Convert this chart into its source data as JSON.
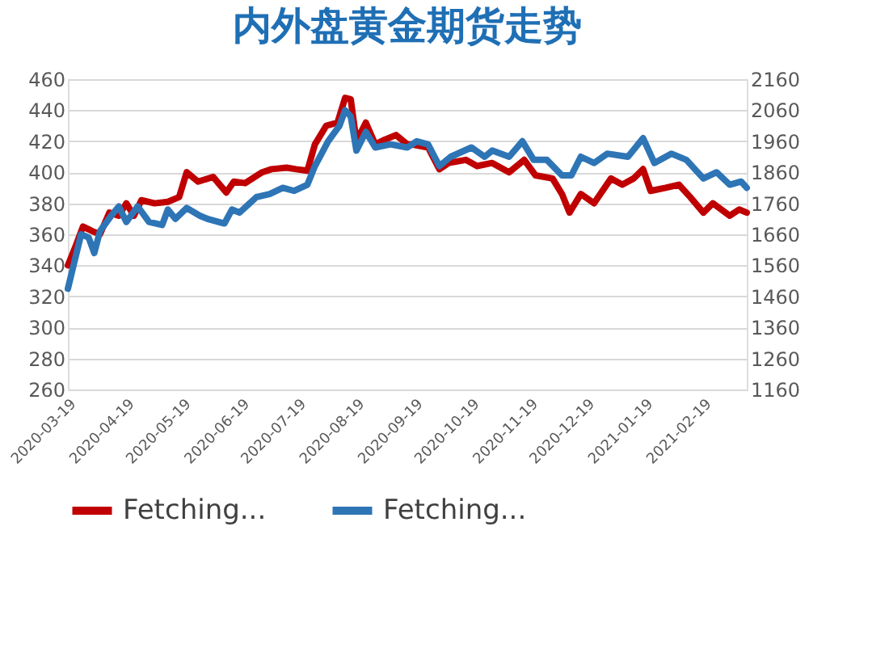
{
  "chart_data": {
    "type": "line",
    "title": "内外盘黄金期货走势",
    "xlim": [
      "2020-03-19",
      "2021-03-14"
    ],
    "xticks": [
      "2020-03-19",
      "2020-04-19",
      "2020-05-19",
      "2020-06-19",
      "2020-07-19",
      "2020-08-19",
      "2020-09-19",
      "2020-10-19",
      "2020-11-19",
      "2020-12-19",
      "2021-01-19",
      "2021-02-19"
    ],
    "ylim": [
      260,
      460
    ],
    "yticks": [
      260,
      280,
      300,
      320,
      340,
      360,
      380,
      400,
      420,
      440,
      460
    ],
    "y2lim": [
      1160,
      2160
    ],
    "y2ticks": [
      1160,
      1260,
      1360,
      1460,
      1560,
      1660,
      1760,
      1860,
      1960,
      2060,
      2160
    ],
    "grid": "y",
    "legend": "bottom",
    "line_style": "solid",
    "series": [
      {
        "name": "Fetching...",
        "color": "#c00000",
        "x": [
          "2020-03-19",
          "2020-03-23",
          "2020-03-27",
          "2020-04-01",
          "2020-04-05",
          "2020-04-10",
          "2020-04-15",
          "2020-04-19",
          "2020-04-23",
          "2020-04-27",
          "2020-05-04",
          "2020-05-11",
          "2020-05-17",
          "2020-05-21",
          "2020-05-27",
          "2020-06-04",
          "2020-06-11",
          "2020-06-15",
          "2020-06-21",
          "2020-06-30",
          "2020-07-05",
          "2020-07-13",
          "2020-07-18",
          "2020-07-24",
          "2020-07-28",
          "2020-08-03",
          "2020-08-09",
          "2020-08-13",
          "2020-08-16",
          "2020-08-19",
          "2020-08-24",
          "2020-08-29",
          "2020-09-03",
          "2020-09-09",
          "2020-09-15",
          "2020-09-17",
          "2020-09-26",
          "2020-10-02",
          "2020-10-07",
          "2020-10-16",
          "2020-10-22",
          "2020-10-30",
          "2020-11-08",
          "2020-11-16",
          "2020-11-22",
          "2020-12-01",
          "2020-12-06",
          "2020-12-10",
          "2020-12-16",
          "2020-12-23",
          "2021-01-01",
          "2021-01-07",
          "2021-01-13",
          "2021-01-18",
          "2021-01-22",
          "2021-01-30",
          "2021-02-06",
          "2021-02-12",
          "2021-02-19",
          "2021-02-24",
          "2021-03-05",
          "2021-03-10",
          "2021-03-14"
        ],
        "values": [
          340,
          352,
          365,
          362,
          360,
          374,
          372,
          380,
          372,
          382,
          380,
          381,
          384,
          400,
          394,
          397,
          387,
          394,
          393,
          400,
          402,
          403,
          402,
          401,
          418,
          430,
          432,
          448,
          447,
          420,
          432,
          418,
          421,
          424,
          418,
          418,
          416,
          402,
          406,
          408,
          404,
          406,
          400,
          408,
          398,
          396,
          386,
          374,
          386,
          380,
          396,
          392,
          396,
          402,
          388,
          390,
          392,
          384,
          374,
          380,
          372,
          376,
          374
        ]
      },
      {
        "name": "Fetching...",
        "color": "#2e75b6",
        "axis": "y2",
        "x": [
          "2020-03-19",
          "2020-03-22",
          "2020-03-26",
          "2020-03-30",
          "2020-04-02",
          "2020-04-05",
          "2020-04-11",
          "2020-04-15",
          "2020-04-19",
          "2020-04-25",
          "2020-05-01",
          "2020-05-08",
          "2020-05-11",
          "2020-05-15",
          "2020-05-21",
          "2020-05-28",
          "2020-06-01",
          "2020-06-10",
          "2020-06-14",
          "2020-06-18",
          "2020-06-27",
          "2020-07-04",
          "2020-07-11",
          "2020-07-17",
          "2020-07-24",
          "2020-07-28",
          "2020-08-04",
          "2020-08-10",
          "2020-08-13",
          "2020-08-16",
          "2020-08-19",
          "2020-08-24",
          "2020-08-29",
          "2020-09-06",
          "2020-09-15",
          "2020-09-20",
          "2020-09-26",
          "2020-10-02",
          "2020-10-08",
          "2020-10-19",
          "2020-10-26",
          "2020-10-30",
          "2020-11-08",
          "2020-11-15",
          "2020-11-21",
          "2020-11-28",
          "2020-12-06",
          "2020-12-11",
          "2020-12-16",
          "2020-12-23",
          "2020-12-30",
          "2021-01-10",
          "2021-01-18",
          "2021-01-24",
          "2021-02-02",
          "2021-02-10",
          "2021-02-19",
          "2021-02-26",
          "2021-03-05",
          "2021-03-11",
          "2021-03-14"
        ],
        "values": [
          1485,
          1560,
          1660,
          1650,
          1600,
          1670,
          1720,
          1750,
          1700,
          1750,
          1700,
          1690,
          1740,
          1710,
          1745,
          1720,
          1710,
          1695,
          1740,
          1730,
          1780,
          1790,
          1810,
          1800,
          1820,
          1880,
          1960,
          2010,
          2060,
          2040,
          1930,
          1990,
          1940,
          1950,
          1940,
          1960,
          1950,
          1880,
          1910,
          1940,
          1910,
          1930,
          1910,
          1960,
          1900,
          1900,
          1850,
          1850,
          1910,
          1890,
          1920,
          1910,
          1970,
          1890,
          1920,
          1900,
          1840,
          1860,
          1820,
          1830,
          1810
        ]
      }
    ]
  }
}
